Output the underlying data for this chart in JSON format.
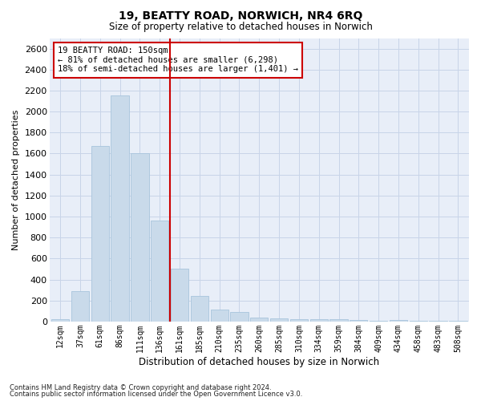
{
  "title": "19, BEATTY ROAD, NORWICH, NR4 6RQ",
  "subtitle": "Size of property relative to detached houses in Norwich",
  "xlabel": "Distribution of detached houses by size in Norwich",
  "ylabel": "Number of detached properties",
  "categories": [
    "12sqm",
    "37sqm",
    "61sqm",
    "86sqm",
    "111sqm",
    "136sqm",
    "161sqm",
    "185sqm",
    "210sqm",
    "235sqm",
    "260sqm",
    "285sqm",
    "310sqm",
    "334sqm",
    "359sqm",
    "384sqm",
    "409sqm",
    "434sqm",
    "458sqm",
    "483sqm",
    "508sqm"
  ],
  "values": [
    20,
    290,
    1670,
    2150,
    1600,
    960,
    500,
    245,
    115,
    90,
    35,
    30,
    25,
    20,
    20,
    15,
    8,
    12,
    5,
    5,
    8
  ],
  "bar_color": "#c9daea",
  "bar_edge_color": "#a8c4dc",
  "highlight_line_color": "#cc0000",
  "annotation_text": "19 BEATTY ROAD: 150sqm\n← 81% of detached houses are smaller (6,298)\n18% of semi-detached houses are larger (1,401) →",
  "annotation_box_color": "#ffffff",
  "annotation_box_edge": "#cc0000",
  "ylim": [
    0,
    2700
  ],
  "yticks": [
    0,
    200,
    400,
    600,
    800,
    1000,
    1200,
    1400,
    1600,
    1800,
    2000,
    2200,
    2400,
    2600
  ],
  "grid_color": "#c8d4e8",
  "background_color": "#e8eef8",
  "footer_line1": "Contains HM Land Registry data © Crown copyright and database right 2024.",
  "footer_line2": "Contains public sector information licensed under the Open Government Licence v3.0."
}
